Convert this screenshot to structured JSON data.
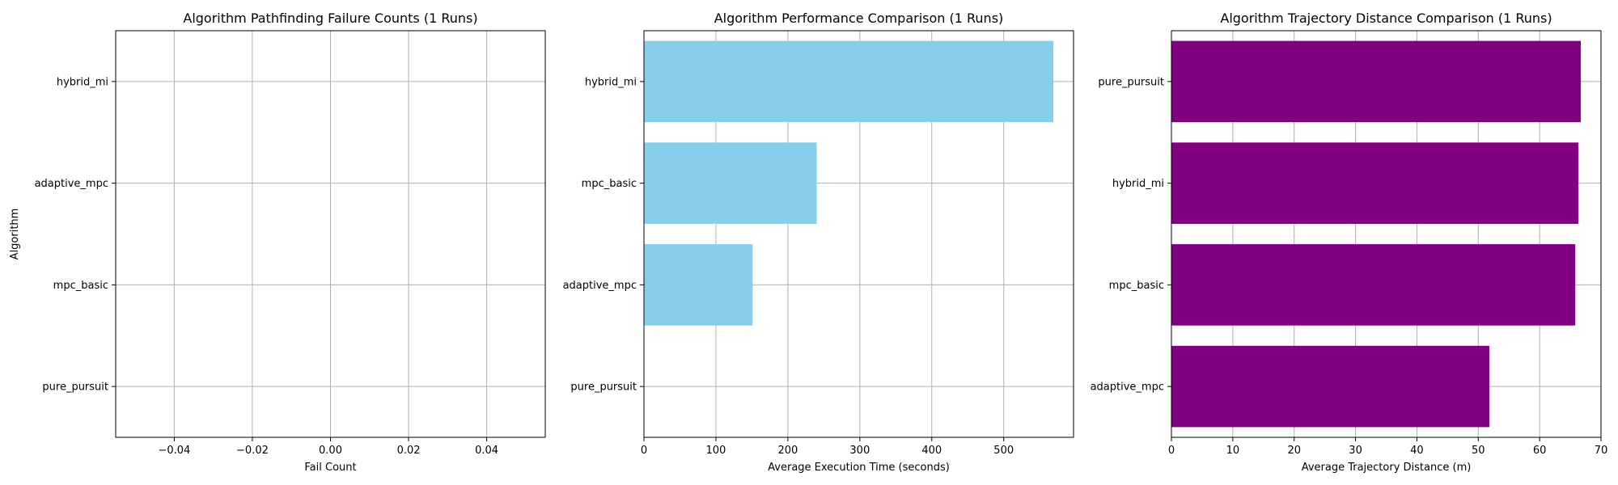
{
  "chart_data": [
    {
      "type": "bar",
      "orientation": "horizontal",
      "title": "Algorithm Pathfinding Failure Counts (1 Runs)",
      "xlabel": "Fail Count",
      "ylabel": "Algorithm",
      "categories": [
        "hybrid_mi",
        "adaptive_mpc",
        "mpc_basic",
        "pure_pursuit"
      ],
      "values": [
        0,
        0,
        0,
        0
      ],
      "xlim": [
        -0.055,
        0.055
      ],
      "xticks": [
        -0.04,
        -0.02,
        0.0,
        0.02,
        0.04
      ],
      "xtick_labels": [
        "−0.04",
        "−0.02",
        "0.00",
        "0.02",
        "0.04"
      ],
      "color": "#1f77b4",
      "grid": true
    },
    {
      "type": "bar",
      "orientation": "horizontal",
      "title": "Algorithm Performance Comparison (1 Runs)",
      "xlabel": "Average Execution Time (seconds)",
      "ylabel": "",
      "categories": [
        "hybrid_mi",
        "mpc_basic",
        "adaptive_mpc",
        "pure_pursuit"
      ],
      "values": [
        569,
        240,
        151,
        0
      ],
      "xlim": [
        0,
        597
      ],
      "xticks": [
        0,
        100,
        200,
        300,
        400,
        500
      ],
      "xtick_labels": [
        "0",
        "100",
        "200",
        "300",
        "400",
        "500"
      ],
      "color": "#87ceeb",
      "grid": true
    },
    {
      "type": "bar",
      "orientation": "horizontal",
      "title": "Algorithm Trajectory Distance Comparison (1 Runs)",
      "xlabel": "Average Trajectory Distance (m)",
      "ylabel": "",
      "categories": [
        "pure_pursuit",
        "hybrid_mi",
        "mpc_basic",
        "adaptive_mpc"
      ],
      "values": [
        66.7,
        66.3,
        65.8,
        51.8
      ],
      "xlim": [
        0,
        70
      ],
      "xticks": [
        0,
        10,
        20,
        30,
        40,
        50,
        60,
        70
      ],
      "xtick_labels": [
        "0",
        "10",
        "20",
        "30",
        "40",
        "50",
        "60",
        "70"
      ],
      "color": "#800080",
      "grid": true
    }
  ]
}
